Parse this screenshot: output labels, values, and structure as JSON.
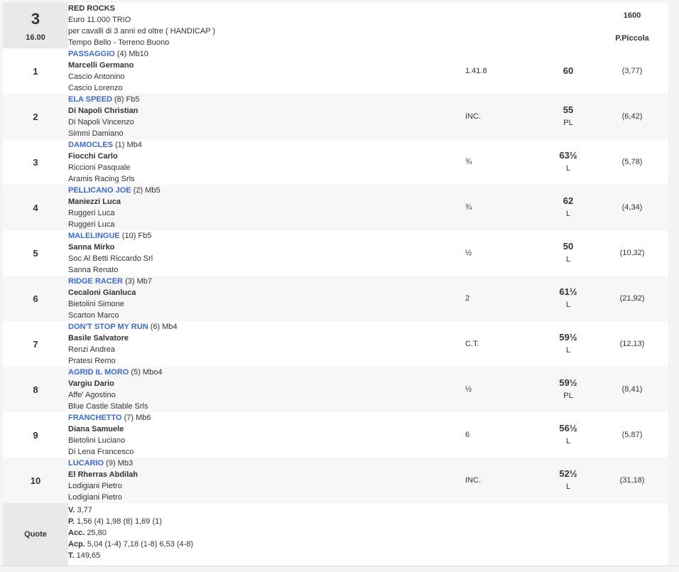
{
  "race": {
    "number": "3",
    "time": "16.00",
    "name": "RED ROCKS",
    "prize": "Euro 11.000 TRIO",
    "conditions": "per cavalli di 3 anni ed oltre ( HANDICAP )",
    "weather": "Tempo Bello - Terreno Buono",
    "distance": "1600",
    "track": "P.Piccola"
  },
  "results": [
    {
      "pos": "1",
      "horse": "PASSAGGIO",
      "extra": "(4) Mb10",
      "jockey": "Marcelli Germano",
      "trainer": "Cascio Antonino",
      "owner": "Cascio Lorenzo",
      "distance": "1.41.8",
      "weight": "60",
      "status": "",
      "odds": "(3,77)"
    },
    {
      "pos": "2",
      "horse": "ELA SPEED",
      "extra": "(8) Fb5",
      "jockey": "Di Napoli Christian",
      "trainer": "Di Napoli Vincenzo",
      "owner": "Simmi Damiano",
      "distance": "INC.",
      "weight": "55",
      "status": "PL",
      "odds": "(6,42)"
    },
    {
      "pos": "3",
      "horse": "DAMOCLES",
      "extra": "(1) Mb4",
      "jockey": "Fiocchi Carlo",
      "trainer": "Riccioni Pasquale",
      "owner": "Aramis Racing Srls",
      "distance": "¾",
      "weight": "63½",
      "status": "L",
      "odds": "(5,78)"
    },
    {
      "pos": "4",
      "horse": "PELLICANO JOE",
      "extra": "(2) Mb5",
      "jockey": "Maniezzi Luca",
      "trainer": "Ruggeri Luca",
      "owner": "Ruggeri Luca",
      "distance": "¾",
      "weight": "62",
      "status": "L",
      "odds": "(4,34)"
    },
    {
      "pos": "5",
      "horse": "MALELINGUE",
      "extra": "(10) Fb5",
      "jockey": "Sanna Mirko",
      "trainer": "Soc Al Betti Riccardo Srl",
      "owner": "Sanna Renato",
      "distance": "½",
      "weight": "50",
      "status": "L",
      "odds": "(10,32)"
    },
    {
      "pos": "6",
      "horse": "RIDGE RACER",
      "extra": "(3) Mb7",
      "jockey": "Cecaloni Gianluca",
      "trainer": "Bietolini Simone",
      "owner": "Scarton Marco",
      "distance": "2",
      "weight": "61½",
      "status": "L",
      "odds": "(21,92)"
    },
    {
      "pos": "7",
      "horse": "DON'T STOP MY RUN",
      "extra": "(6) Mb4",
      "jockey": "Basile Salvatore",
      "trainer": "Renzi Andrea",
      "owner": "Pratesi Remo",
      "distance": "C.T.",
      "weight": "59½",
      "status": "L",
      "odds": "(12,13)"
    },
    {
      "pos": "8",
      "horse": "AGRID IL MORO",
      "extra": "(5) Mbo4",
      "jockey": "Vargiu Dario",
      "trainer": "Affe' Agostino",
      "owner": "Blue Castle Stable Srls",
      "distance": "½",
      "weight": "59½",
      "status": "PL",
      "odds": "(8,41)"
    },
    {
      "pos": "9",
      "horse": "FRANCHETTO",
      "extra": "(7) Mb6",
      "jockey": "Diana Samuele",
      "trainer": "Bietolini Luciano",
      "owner": "Di Lena Francesco",
      "distance": "6",
      "weight": "56½",
      "status": "L",
      "odds": "(5,87)"
    },
    {
      "pos": "10",
      "horse": "LUCARIO",
      "extra": "(9) Mb3",
      "jockey": "El Rherras Abdilah",
      "trainer": "Lodigiani Pietro",
      "owner": "Lodigiani Pietro",
      "distance": "INC.",
      "weight": "52½",
      "status": "L",
      "odds": "(31,18)"
    }
  ],
  "quote": {
    "label": "Quote",
    "lines": [
      {
        "key": "V.",
        "value": "3,77"
      },
      {
        "key": "P.",
        "value": "1,56 (4)  1,98 (8)  1,69 (1)"
      },
      {
        "key": "Acc.",
        "value": "25,80"
      },
      {
        "key": "Acp.",
        "value": "5,04 (1-4)  7,18 (1-8)  6,53 (4-8)"
      },
      {
        "key": "T.",
        "value": "149,65"
      }
    ]
  },
  "colors": {
    "horse_link": "#3d6bc9",
    "header_cell": "#e8e8e8",
    "alt_row": "#f7f7f7"
  }
}
